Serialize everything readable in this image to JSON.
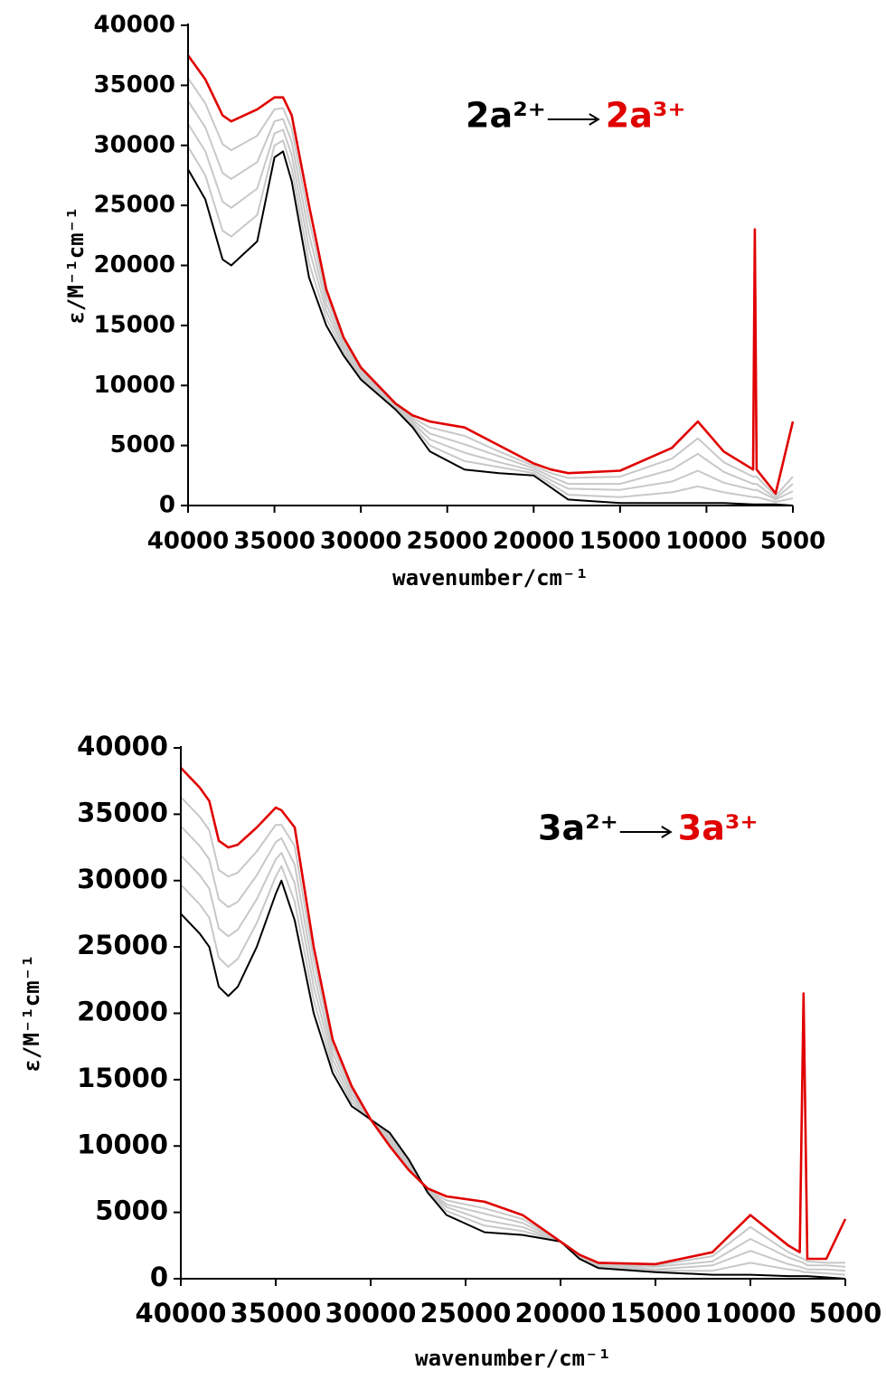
{
  "chart_data": [
    {
      "type": "line",
      "x_label": "wavenumber/cm⁻¹",
      "y_label": "ε/M⁻¹cm⁻¹",
      "annotation": [
        {
          "text": "2a²⁺",
          "color": "#000000"
        },
        {
          "text": "2a³⁺",
          "color": "#e00000"
        }
      ],
      "xlim": [
        40000,
        5000
      ],
      "xticks": [
        40000,
        35000,
        30000,
        25000,
        20000,
        15000,
        10000,
        5000
      ],
      "ylim": [
        0,
        40000
      ],
      "yticks": [
        0,
        5000,
        10000,
        15000,
        20000,
        25000,
        30000,
        35000,
        40000
      ],
      "x": [
        40000,
        39000,
        38000,
        37500,
        36000,
        35000,
        34500,
        34000,
        33000,
        32000,
        31000,
        30000,
        28000,
        27000,
        26000,
        24000,
        22000,
        20000,
        19000,
        18000,
        15000,
        12000,
        10500,
        9000,
        7300,
        7200,
        7100,
        6000,
        5000
      ],
      "series": [
        {
          "color": "#c8c8c8",
          "values": [
            29900,
            27500,
            22900,
            22400,
            24200,
            30000,
            30400,
            28100,
            20200,
            15600,
            12800,
            10700,
            8100,
            6700,
            5000,
            3700,
            3200,
            2700,
            1800,
            900,
            700,
            1100,
            1600,
            1100,
            700,
            700,
            700,
            300,
            600
          ]
        },
        {
          "color": "#c8c8c8",
          "values": [
            31800,
            29500,
            25300,
            24800,
            26400,
            31000,
            31300,
            29200,
            21400,
            16200,
            13100,
            10900,
            8200,
            6900,
            5500,
            4400,
            3600,
            2900,
            2100,
            1400,
            1300,
            2000,
            2900,
            1900,
            1300,
            1300,
            1300,
            500,
            1200
          ]
        },
        {
          "color": "#c8c8c8",
          "values": [
            33700,
            31500,
            27700,
            27200,
            28600,
            32000,
            32200,
            30300,
            22600,
            16800,
            13400,
            11100,
            8300,
            7100,
            6000,
            5100,
            4100,
            3100,
            2400,
            1800,
            1800,
            3000,
            4300,
            2800,
            1800,
            1800,
            1800,
            600,
            1800
          ]
        },
        {
          "color": "#c8c8c8",
          "values": [
            35600,
            33500,
            30100,
            29600,
            30800,
            33000,
            33100,
            31400,
            23800,
            17400,
            13700,
            11300,
            8400,
            7300,
            6500,
            5800,
            4500,
            3300,
            2700,
            2300,
            2400,
            3900,
            5600,
            3600,
            2400,
            2400,
            2400,
            800,
            2400
          ]
        },
        {
          "color": "#000000",
          "values": [
            28000,
            25500,
            20500,
            20000,
            22000,
            29000,
            29500,
            27000,
            19000,
            15000,
            12500,
            10500,
            8000,
            6500,
            4500,
            3000,
            2700,
            2500,
            1500,
            500,
            200,
            200,
            200,
            200,
            100,
            100,
            100,
            100,
            0
          ]
        },
        {
          "color": "#e00000",
          "values": [
            37500,
            35500,
            32500,
            32000,
            33000,
            34000,
            34000,
            32500,
            25000,
            18000,
            14000,
            11500,
            8500,
            7500,
            7000,
            6500,
            5000,
            3500,
            3000,
            2700,
            2900,
            4800,
            7000,
            4500,
            3000,
            23000,
            3000,
            1000,
            7000
          ]
        }
      ]
    },
    {
      "type": "line",
      "x_label": "wavenumber/cm⁻¹",
      "y_label": "ε/M⁻¹cm⁻¹",
      "annotation": [
        {
          "text": "3a²⁺",
          "color": "#000000"
        },
        {
          "text": "3a³⁺",
          "color": "#e00000"
        }
      ],
      "xlim": [
        40000,
        5000
      ],
      "xticks": [
        40000,
        35000,
        30000,
        25000,
        20000,
        15000,
        10000,
        5000
      ],
      "ylim": [
        0,
        40000
      ],
      "yticks": [
        0,
        5000,
        10000,
        15000,
        20000,
        25000,
        30000,
        35000,
        40000
      ],
      "x": [
        40000,
        39000,
        38500,
        38000,
        37500,
        37000,
        36000,
        35000,
        34700,
        34000,
        33000,
        32000,
        31000,
        30000,
        29000,
        28000,
        27000,
        26000,
        24000,
        22000,
        20000,
        19000,
        18000,
        15000,
        12000,
        10000,
        8000,
        7400,
        7200,
        7000,
        6000,
        5000
      ],
      "series": [
        {
          "color": "#c8c8c8",
          "values": [
            29700,
            28200,
            27200,
            24200,
            23500,
            24100,
            26800,
            30300,
            31100,
            28400,
            21000,
            16000,
            13300,
            12000,
            10800,
            8800,
            6600,
            5100,
            4000,
            3600,
            2800,
            1600,
            900,
            600,
            600,
            1200,
            700,
            600,
            500,
            500,
            400,
            300
          ]
        },
        {
          "color": "#c8c8c8",
          "values": [
            31900,
            30400,
            29400,
            26400,
            25800,
            26300,
            28600,
            31600,
            32100,
            29800,
            22000,
            16500,
            13600,
            12000,
            10600,
            8700,
            6600,
            5400,
            4400,
            3900,
            2800,
            1600,
            1000,
            700,
            1000,
            2100,
            1100,
            900,
            800,
            700,
            700,
            600
          ]
        },
        {
          "color": "#c8c8c8",
          "values": [
            34100,
            32600,
            31600,
            28600,
            28000,
            28400,
            30400,
            32900,
            33200,
            31200,
            23000,
            17000,
            13900,
            12000,
            10400,
            8500,
            6700,
            5600,
            4900,
            4200,
            2800,
            1700,
            1000,
            900,
            1300,
            3000,
            1600,
            1300,
            1200,
            1000,
            1000,
            900
          ]
        },
        {
          "color": "#c8c8c8",
          "values": [
            36300,
            34800,
            33800,
            30800,
            30300,
            30600,
            32200,
            34200,
            34200,
            32600,
            24000,
            17500,
            14200,
            12000,
            10200,
            8400,
            6700,
            5900,
            5300,
            4500,
            2800,
            1700,
            1100,
            1000,
            1700,
            3900,
            2000,
            1600,
            1500,
            1300,
            1200,
            1200
          ]
        },
        {
          "color": "#000000",
          "values": [
            27500,
            26000,
            25000,
            22000,
            21300,
            22000,
            25000,
            29000,
            30000,
            27000,
            20000,
            15500,
            13000,
            12000,
            11000,
            9000,
            6500,
            4800,
            3500,
            3300,
            2800,
            1500,
            800,
            500,
            300,
            300,
            200,
            200,
            200,
            200,
            100,
            0
          ]
        },
        {
          "color": "#e00000",
          "values": [
            38500,
            37000,
            36000,
            33000,
            32500,
            32700,
            34000,
            35500,
            35300,
            34000,
            25000,
            18000,
            14500,
            12000,
            10000,
            8200,
            6800,
            6200,
            5800,
            4800,
            2800,
            1800,
            1200,
            1100,
            2000,
            4800,
            2500,
            2000,
            21500,
            1500,
            1500,
            4500
          ]
        }
      ]
    }
  ]
}
